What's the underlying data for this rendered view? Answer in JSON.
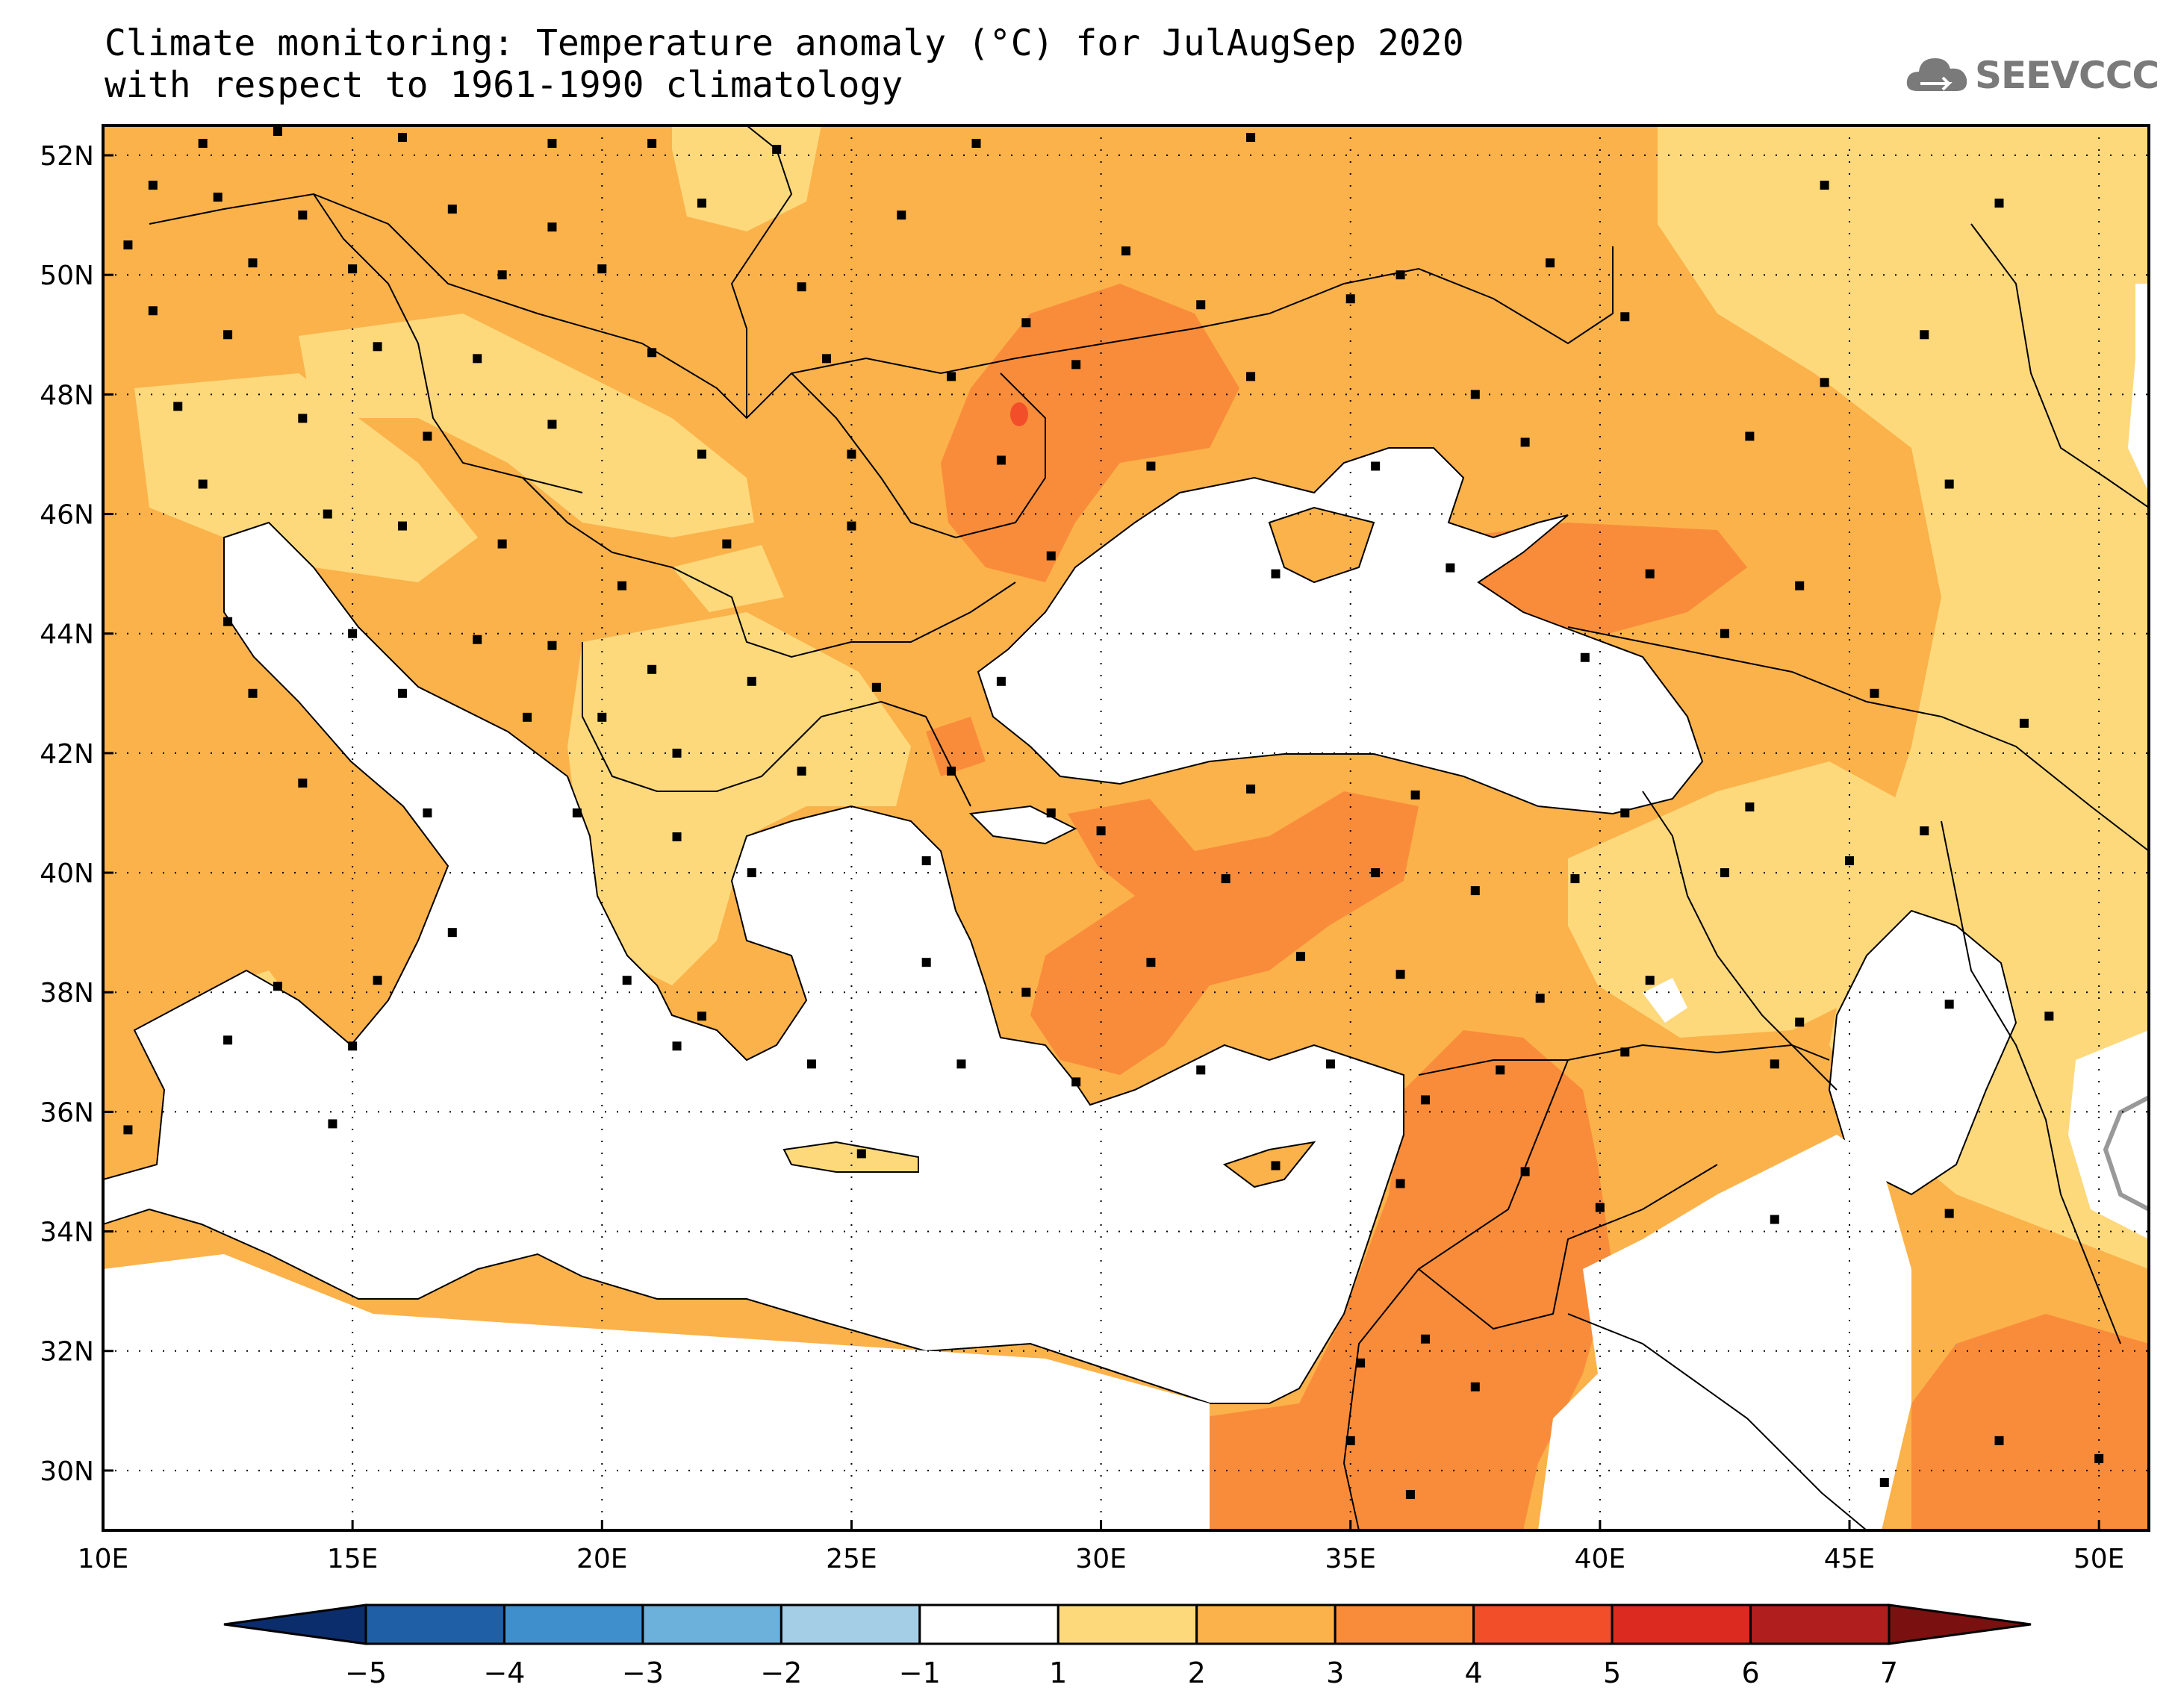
{
  "title": {
    "line1": "Climate monitoring: Temperature anomaly (°C) for JulAugSep 2020",
    "line2": "with respect to 1961-1990 climatology"
  },
  "logo": {
    "text": "SEEVCCC",
    "icon": "cloud-icon",
    "color": "#7a7a7a"
  },
  "map": {
    "lon_range": [
      10,
      51
    ],
    "lat_range": [
      29,
      52.5
    ],
    "lon_ticks": [
      "10E",
      "15E",
      "20E",
      "25E",
      "30E",
      "35E",
      "40E",
      "45E",
      "50E"
    ],
    "lat_ticks": [
      "30N",
      "32N",
      "34N",
      "36N",
      "38N",
      "40N",
      "42N",
      "44N",
      "46N",
      "48N",
      "50N",
      "52N"
    ],
    "grid": "dotted"
  },
  "colorbar": {
    "labels": [
      "-5",
      "-4",
      "-3",
      "-2",
      "-1",
      "1",
      "2",
      "3",
      "4",
      "5",
      "6",
      "7"
    ],
    "colors": [
      "#0b2d6b",
      "#1f5fa6",
      "#3f8fcc",
      "#6cb0dc",
      "#a4cde6",
      "#ffffff",
      "#fdd97c",
      "#fbb24a",
      "#f98c3a",
      "#f24e2a",
      "#dc2a20",
      "#b01e1e",
      "#7a1010"
    ]
  },
  "anomaly_colors": {
    "range_1_2": "#fdd97c",
    "range_2_3": "#fbb24a",
    "range_3_4": "#f98c3a",
    "range_4_5": "#f24e2a"
  }
}
